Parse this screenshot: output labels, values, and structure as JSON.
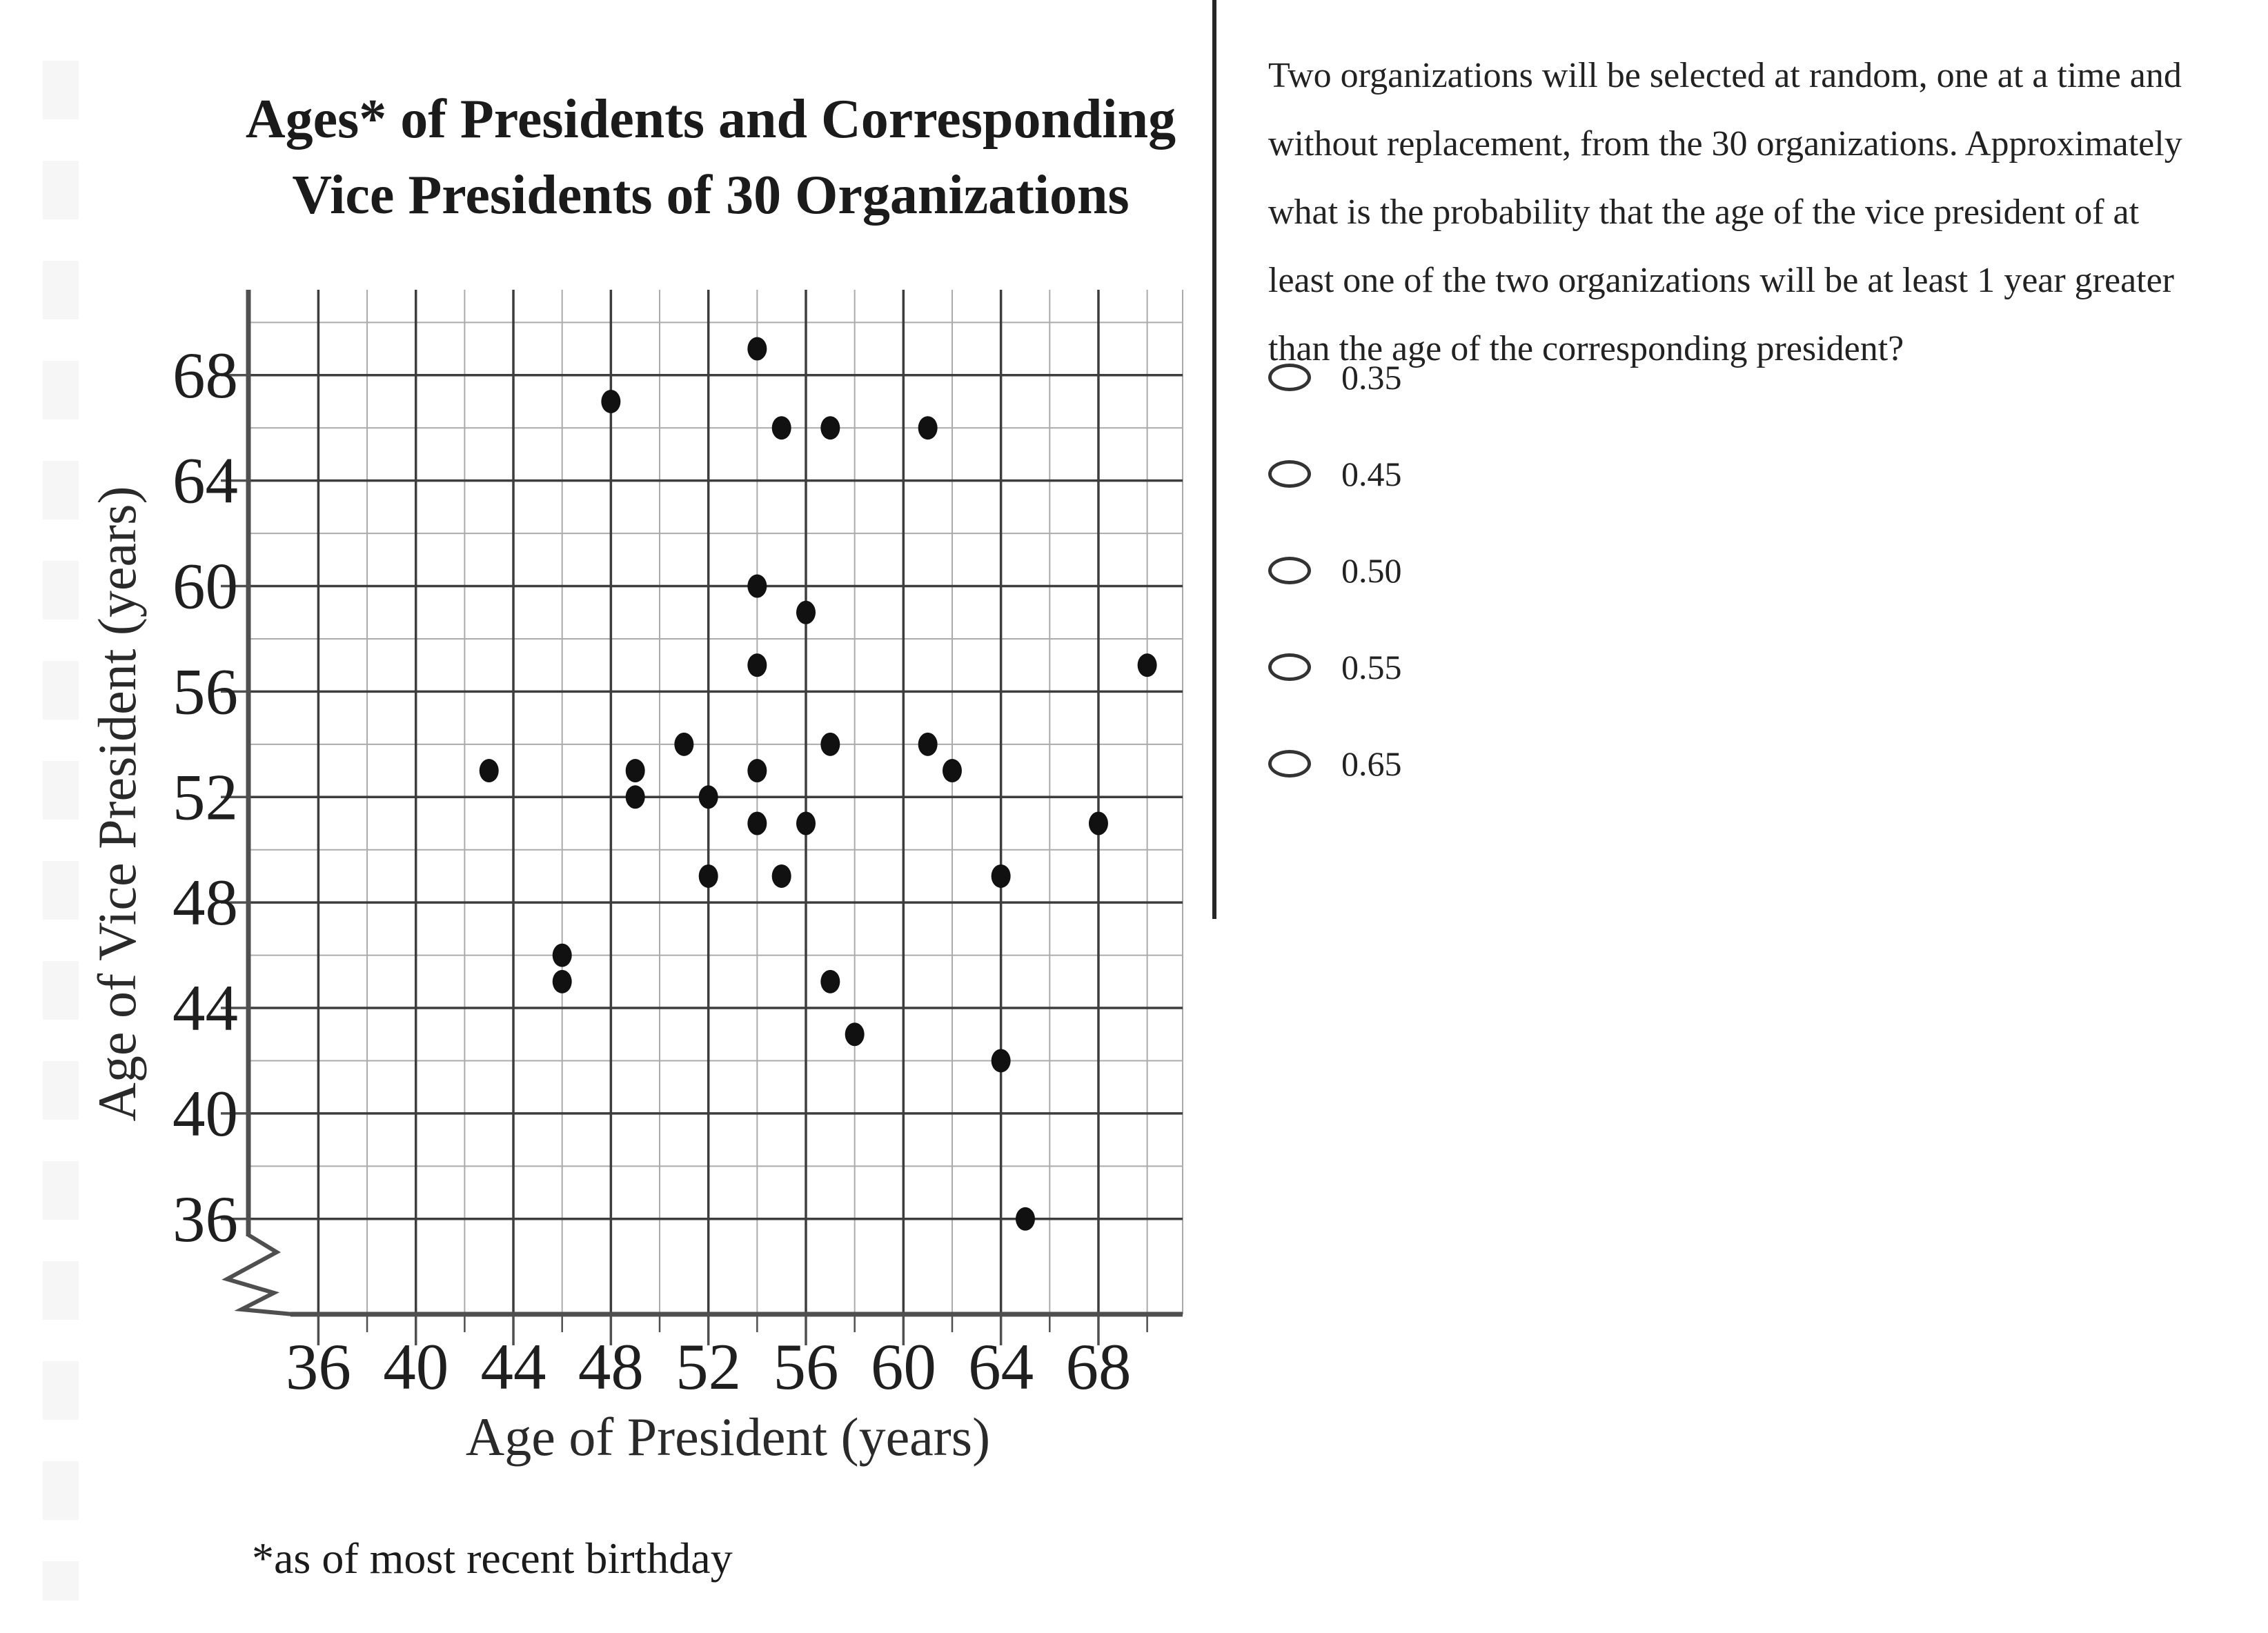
{
  "chart_data": {
    "type": "scatter",
    "title": "Ages* of Presidents and Corresponding\nVice Presidents of 30 Organizations",
    "xlabel": "Age of President (years)",
    "ylabel": "Age of Vice President (years)",
    "footnote": "*as of most recent birthday",
    "x_ticks": [
      36,
      40,
      44,
      48,
      52,
      56,
      60,
      64,
      68
    ],
    "y_ticks": [
      36,
      40,
      44,
      48,
      52,
      56,
      60,
      64,
      68
    ],
    "minor_grid_step": 2,
    "xlim": [
      33,
      71.5
    ],
    "ylim": [
      32,
      72
    ],
    "grid": "on",
    "legend_position": "none",
    "axis_break_symbol": "zigzag at origin on both axes starting at 36",
    "marker_color": "#111111",
    "points": [
      [
        43,
        53
      ],
      [
        46,
        46
      ],
      [
        46,
        45
      ],
      [
        48,
        67
      ],
      [
        49,
        53
      ],
      [
        49,
        52
      ],
      [
        51,
        54
      ],
      [
        52,
        52
      ],
      [
        52,
        49
      ],
      [
        54,
        69
      ],
      [
        54,
        60
      ],
      [
        54,
        57
      ],
      [
        54,
        53
      ],
      [
        54,
        51
      ],
      [
        55,
        66
      ],
      [
        55,
        49
      ],
      [
        56,
        59
      ],
      [
        56,
        51
      ],
      [
        57,
        66
      ],
      [
        57,
        54
      ],
      [
        57,
        45
      ],
      [
        58,
        43
      ],
      [
        61,
        66
      ],
      [
        61,
        54
      ],
      [
        62,
        53
      ],
      [
        64,
        49
      ],
      [
        64,
        42
      ],
      [
        65,
        36
      ],
      [
        68,
        51
      ],
      [
        70,
        57
      ]
    ]
  },
  "question": {
    "text": "Two organizations will be selected at random, one at a time and\nwithout replacement, from the 30 organizations. Approximately\nwhat is the probability that the age of the vice president of at\nleast one of the two organizations will be at least 1 year greater\nthan the age of the corresponding president?",
    "options": [
      "0.35",
      "0.45",
      "0.50",
      "0.55",
      "0.65"
    ]
  }
}
